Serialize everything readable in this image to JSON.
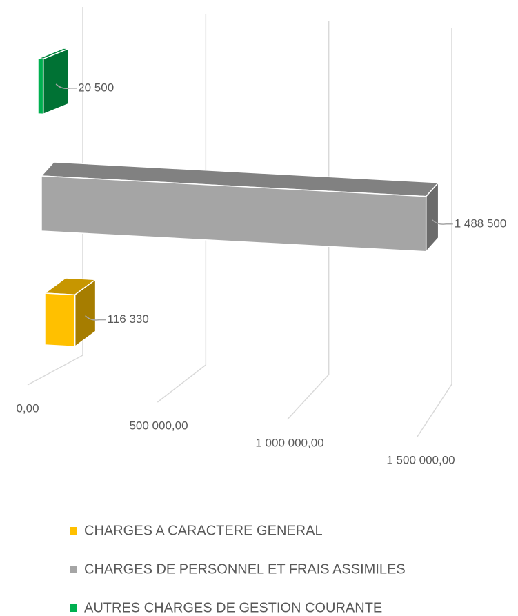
{
  "chart_data": {
    "type": "bar",
    "orientation": "horizontal",
    "categories": [
      null
    ],
    "series": [
      {
        "name": "CHARGES A CARACTERE GENERAL",
        "color": "#ffc000",
        "values": [
          116330
        ],
        "value_labels": [
          "116 330"
        ]
      },
      {
        "name": "CHARGES DE PERSONNEL ET FRAIS ASSIMILES",
        "color": "#a5a5a5",
        "values": [
          1488500
        ],
        "value_labels": [
          "1 488 500"
        ]
      },
      {
        "name": "AUTRES CHARGES DE GESTION COURANTE",
        "color": "#00b050",
        "values": [
          20500
        ],
        "value_labels": [
          "20 500"
        ]
      }
    ],
    "xlim": [
      0,
      1500000
    ],
    "xticks": [
      {
        "value": 0,
        "label": "0,00"
      },
      {
        "value": 500000,
        "label": "500 000,00"
      },
      {
        "value": 1000000,
        "label": "1 000 000,00"
      },
      {
        "value": 1500000,
        "label": "1 500 000,00"
      }
    ],
    "grid": true,
    "legend": "bottom"
  }
}
